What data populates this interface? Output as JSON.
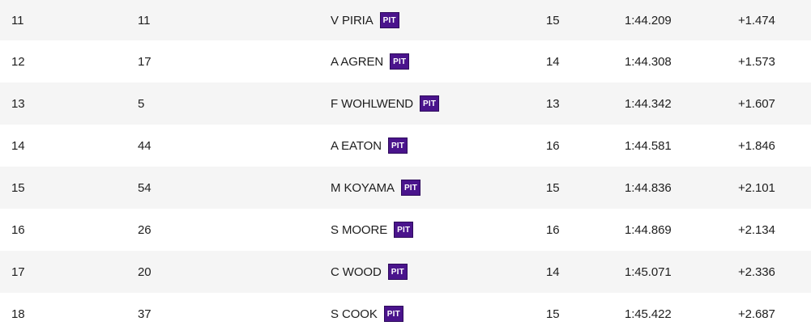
{
  "results": {
    "rows": [
      {
        "pos": "11",
        "number": "11",
        "driver": "V PIRIA",
        "pit": "PIT",
        "laps": "15",
        "time": "1:44.209",
        "gap": "+1.474"
      },
      {
        "pos": "12",
        "number": "17",
        "driver": "A AGREN",
        "pit": "PIT",
        "laps": "14",
        "time": "1:44.308",
        "gap": "+1.573"
      },
      {
        "pos": "13",
        "number": "5",
        "driver": "F WOHLWEND",
        "pit": "PIT",
        "laps": "13",
        "time": "1:44.342",
        "gap": "+1.607"
      },
      {
        "pos": "14",
        "number": "44",
        "driver": "A EATON",
        "pit": "PIT",
        "laps": "16",
        "time": "1:44.581",
        "gap": "+1.846"
      },
      {
        "pos": "15",
        "number": "54",
        "driver": "M KOYAMA",
        "pit": "PIT",
        "laps": "15",
        "time": "1:44.836",
        "gap": "+2.101"
      },
      {
        "pos": "16",
        "number": "26",
        "driver": "S MOORE",
        "pit": "PIT",
        "laps": "16",
        "time": "1:44.869",
        "gap": "+2.134"
      },
      {
        "pos": "17",
        "number": "20",
        "driver": "C WOOD",
        "pit": "PIT",
        "laps": "14",
        "time": "1:45.071",
        "gap": "+2.336"
      },
      {
        "pos": "18",
        "number": "37",
        "driver": "S COOK",
        "pit": "PIT",
        "laps": "15",
        "time": "1:45.422",
        "gap": "+2.687"
      }
    ]
  },
  "colors": {
    "pit_badge": "#4a148c",
    "row_shade": "#f5f5f5",
    "text": "#1e1e1e"
  }
}
